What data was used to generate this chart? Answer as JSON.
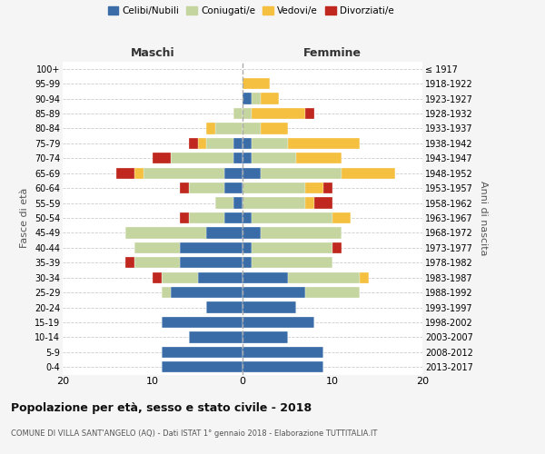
{
  "age_groups": [
    "0-4",
    "5-9",
    "10-14",
    "15-19",
    "20-24",
    "25-29",
    "30-34",
    "35-39",
    "40-44",
    "45-49",
    "50-54",
    "55-59",
    "60-64",
    "65-69",
    "70-74",
    "75-79",
    "80-84",
    "85-89",
    "90-94",
    "95-99",
    "100+"
  ],
  "birth_years": [
    "2013-2017",
    "2008-2012",
    "2003-2007",
    "1998-2002",
    "1993-1997",
    "1988-1992",
    "1983-1987",
    "1978-1982",
    "1973-1977",
    "1968-1972",
    "1963-1967",
    "1958-1962",
    "1953-1957",
    "1948-1952",
    "1943-1947",
    "1938-1942",
    "1933-1937",
    "1928-1932",
    "1923-1927",
    "1918-1922",
    "≤ 1917"
  ],
  "colors": {
    "celibi": "#3a6da8",
    "coniugati": "#c5d5a0",
    "vedovi": "#f5c040",
    "divorziati": "#c0271f"
  },
  "males": {
    "celibi": [
      9,
      9,
      6,
      9,
      4,
      8,
      5,
      7,
      7,
      4,
      2,
      1,
      2,
      2,
      1,
      1,
      0,
      0,
      0,
      0,
      0
    ],
    "coniugati": [
      0,
      0,
      0,
      0,
      0,
      1,
      4,
      5,
      5,
      9,
      4,
      2,
      4,
      9,
      7,
      3,
      3,
      1,
      0,
      0,
      0
    ],
    "vedovi": [
      0,
      0,
      0,
      0,
      0,
      0,
      0,
      0,
      0,
      0,
      0,
      0,
      0,
      1,
      0,
      1,
      1,
      0,
      0,
      0,
      0
    ],
    "divorziati": [
      0,
      0,
      0,
      0,
      0,
      0,
      1,
      1,
      0,
      0,
      1,
      0,
      1,
      2,
      2,
      1,
      0,
      0,
      0,
      0,
      0
    ]
  },
  "females": {
    "celibi": [
      9,
      9,
      5,
      8,
      6,
      7,
      5,
      1,
      1,
      2,
      1,
      0,
      0,
      2,
      1,
      1,
      0,
      0,
      1,
      0,
      0
    ],
    "coniugati": [
      0,
      0,
      0,
      0,
      0,
      6,
      8,
      9,
      9,
      9,
      9,
      7,
      7,
      9,
      5,
      4,
      2,
      1,
      1,
      0,
      0
    ],
    "vedovi": [
      0,
      0,
      0,
      0,
      0,
      0,
      1,
      0,
      0,
      0,
      2,
      1,
      2,
      6,
      5,
      8,
      3,
      6,
      2,
      3,
      0
    ],
    "divorziati": [
      0,
      0,
      0,
      0,
      0,
      0,
      0,
      0,
      1,
      0,
      0,
      2,
      1,
      0,
      0,
      0,
      0,
      1,
      0,
      0,
      0
    ]
  },
  "title": "Popolazione per età, sesso e stato civile - 2018",
  "subtitle": "COMUNE DI VILLA SANT'ANGELO (AQ) - Dati ISTAT 1° gennaio 2018 - Elaborazione TUTTITALIA.IT",
  "xlabel_left": "Maschi",
  "xlabel_right": "Femmine",
  "ylabel_left": "Fasce di età",
  "ylabel_right": "Anni di nascita",
  "xlim": 20,
  "bg_color": "#f5f5f5",
  "plot_bg": "#ffffff",
  "grid_color": "#cccccc"
}
